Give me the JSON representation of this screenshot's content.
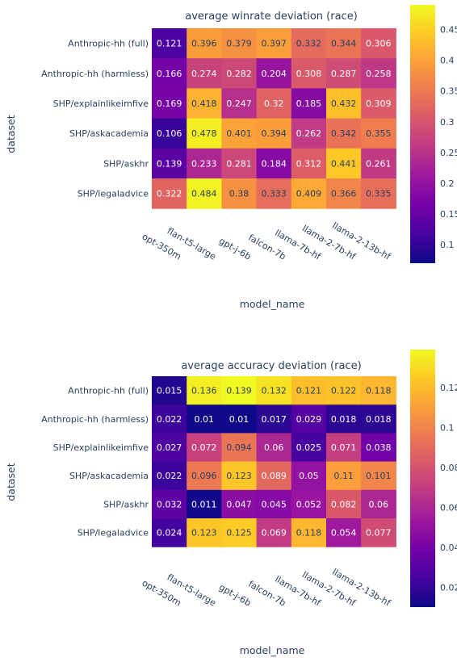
{
  "chart_data": [
    {
      "type": "heatmap",
      "title": "average winrate deviation (race)",
      "xlabel": "model_name",
      "ylabel": "dataset",
      "x": [
        "opt-350m",
        "flan-t5-large",
        "gpt-j-6b",
        "falcon-7b",
        "llama-7b-hf",
        "llama-2-7b-hf",
        "llama-2-13b-hf"
      ],
      "y": [
        "Anthropic-hh (full)",
        "Anthropic-hh (harmless)",
        "SHP/explainlikeimfive",
        "SHP/askacademia",
        "SHP/askhr",
        "SHP/legaladvice"
      ],
      "z": [
        [
          0.121,
          0.396,
          0.379,
          0.397,
          0.332,
          0.344,
          0.306
        ],
        [
          0.166,
          0.274,
          0.282,
          0.204,
          0.308,
          0.287,
          0.258
        ],
        [
          0.169,
          0.418,
          0.247,
          0.32,
          0.185,
          0.432,
          0.309
        ],
        [
          0.106,
          0.478,
          0.401,
          0.394,
          0.262,
          0.342,
          0.355
        ],
        [
          0.139,
          0.233,
          0.281,
          0.184,
          0.312,
          0.441,
          0.261
        ],
        [
          0.322,
          0.484,
          0.38,
          0.333,
          0.409,
          0.366,
          0.335
        ]
      ],
      "colorscale": "plasma",
      "zrange": [
        0.07,
        0.49
      ],
      "colorbar_ticks": [
        0.1,
        0.15,
        0.2,
        0.25,
        0.3,
        0.35,
        0.4,
        0.45
      ]
    },
    {
      "type": "heatmap",
      "title": "average accuracy deviation (race)",
      "xlabel": "model_name",
      "ylabel": "dataset",
      "x": [
        "opt-350m",
        "flan-t5-large",
        "gpt-j-6b",
        "falcon-7b",
        "llama-7b-hf",
        "llama-2-7b-hf",
        "llama-2-13b-hf"
      ],
      "y": [
        "Anthropic-hh (full)",
        "Anthropic-hh (harmless)",
        "SHP/explainlikeimfive",
        "SHP/askacademia",
        "SHP/askhr",
        "SHP/legaladvice"
      ],
      "z": [
        [
          0.015,
          0.136,
          0.139,
          0.132,
          0.121,
          0.122,
          0.118
        ],
        [
          0.022,
          0.01,
          0.01,
          0.017,
          0.029,
          0.018,
          0.018
        ],
        [
          0.027,
          0.072,
          0.094,
          0.06,
          0.025,
          0.071,
          0.038
        ],
        [
          0.022,
          0.096,
          0.123,
          0.089,
          0.05,
          0.11,
          0.101
        ],
        [
          0.032,
          0.011,
          0.047,
          0.045,
          0.052,
          0.082,
          0.06
        ],
        [
          0.024,
          0.123,
          0.125,
          0.069,
          0.118,
          0.054,
          0.077
        ]
      ],
      "colorscale": "plasma",
      "zrange": [
        0.01,
        0.139
      ],
      "colorbar_ticks": [
        0.02,
        0.04,
        0.06,
        0.08,
        0.1,
        0.12
      ]
    }
  ]
}
